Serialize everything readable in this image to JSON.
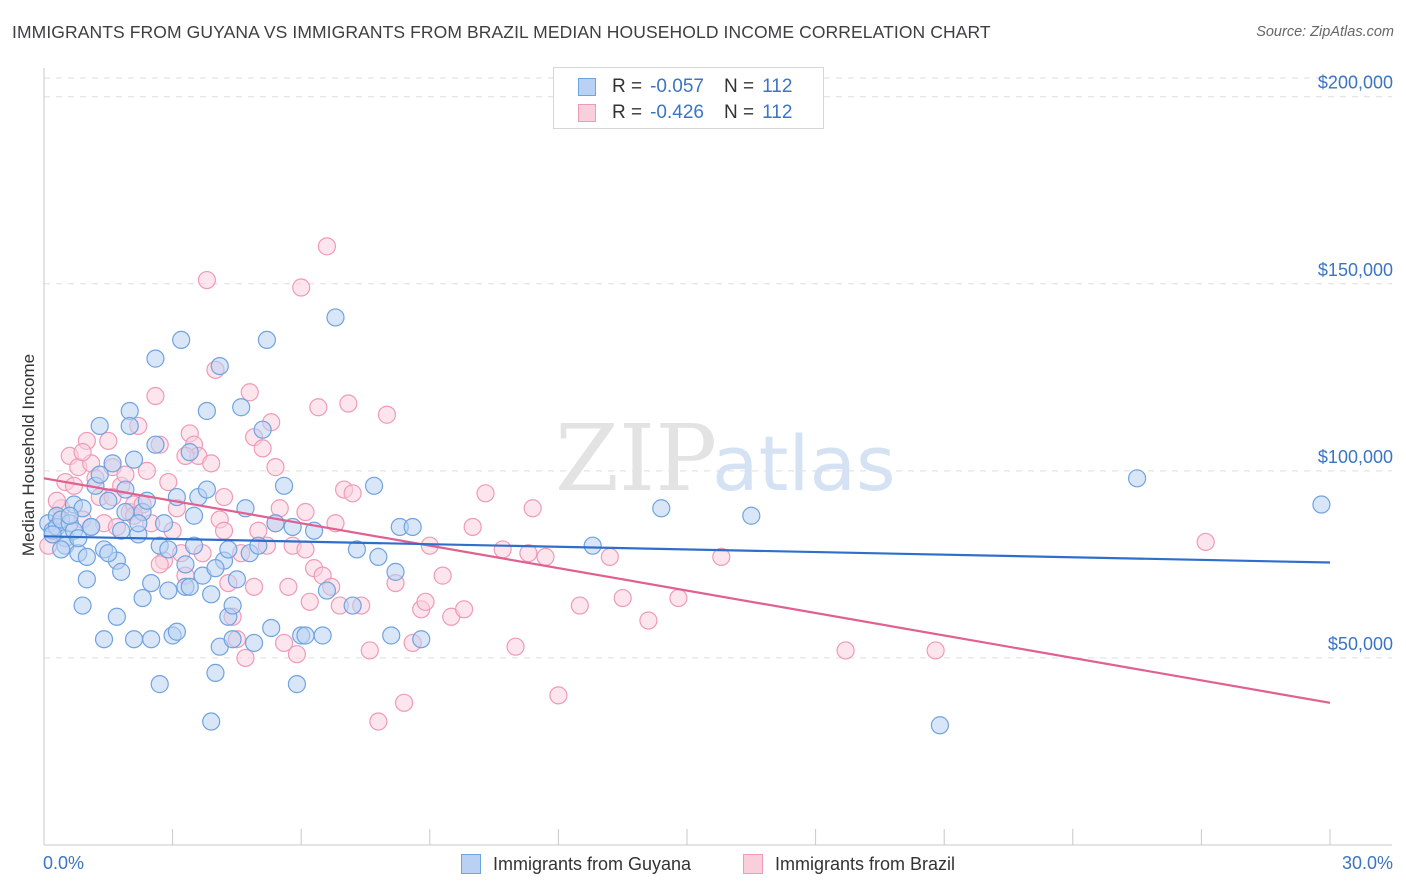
{
  "header": {
    "title": "IMMIGRANTS FROM GUYANA VS IMMIGRANTS FROM BRAZIL MEDIAN HOUSEHOLD INCOME CORRELATION CHART",
    "source": "Source: ZipAtlas.com"
  },
  "watermark": {
    "zip": "ZIP",
    "atlas": "atlas"
  },
  "colors": {
    "guyana": "#6fa3e0",
    "guyana_fill": "#b9d2f3",
    "guyana_line": "#2f6fcc",
    "brazil": "#f09ab8",
    "brazil_fill": "#f9cfdc",
    "brazil_line": "#e0608f",
    "axis_text": "#3a75c4",
    "grid": "#dddddd"
  },
  "legend": {
    "rows": [
      {
        "r_label": "R =",
        "r_value": "-0.057",
        "n_label": "N =",
        "n_value": "112"
      },
      {
        "r_label": "R =",
        "r_value": "-0.426",
        "n_label": "N =",
        "n_value": "112"
      }
    ]
  },
  "bottom_legend": {
    "guyana_label": "Immigrants from Guyana",
    "brazil_label": "Immigrants from Brazil"
  },
  "chart_data": {
    "type": "scatter",
    "ylabel": "Median Household Income",
    "xlim": [
      0,
      30
    ],
    "ylim": [
      0,
      205000
    ],
    "x_tick_labels": [
      "0.0%",
      "30.0%"
    ],
    "y_ticks": [
      {
        "value": 50000,
        "label": "$50,000"
      },
      {
        "value": 100000,
        "label": "$100,000"
      },
      {
        "value": 150000,
        "label": "$150,000"
      },
      {
        "value": 200000,
        "label": "$200,000"
      }
    ],
    "grid": "horizontal dashed",
    "series": [
      {
        "name": "Immigrants from Guyana",
        "trend": {
          "x": [
            0,
            30
          ],
          "y": [
            82500,
            75500
          ]
        },
        "points": [
          [
            0.1,
            86000
          ],
          [
            0.2,
            84000
          ],
          [
            0.3,
            88000
          ],
          [
            0.3,
            85000
          ],
          [
            0.4,
            87000
          ],
          [
            0.5,
            82000
          ],
          [
            0.5,
            80000
          ],
          [
            0.6,
            86000
          ],
          [
            0.7,
            84000
          ],
          [
            0.7,
            91000
          ],
          [
            0.8,
            78000
          ],
          [
            0.9,
            90000
          ],
          [
            0.9,
            64000
          ],
          [
            1.0,
            77000
          ],
          [
            1.0,
            71000
          ],
          [
            1.1,
            85000
          ],
          [
            1.2,
            96000
          ],
          [
            1.3,
            112000
          ],
          [
            1.3,
            99000
          ],
          [
            1.4,
            55000
          ],
          [
            1.4,
            79000
          ],
          [
            1.5,
            92000
          ],
          [
            1.6,
            102000
          ],
          [
            1.7,
            76000
          ],
          [
            1.7,
            61000
          ],
          [
            1.8,
            84000
          ],
          [
            1.9,
            89000
          ],
          [
            1.9,
            95000
          ],
          [
            2.0,
            116000
          ],
          [
            2.0,
            112000
          ],
          [
            2.1,
            103000
          ],
          [
            2.1,
            55000
          ],
          [
            2.2,
            83000
          ],
          [
            2.3,
            89000
          ],
          [
            2.3,
            66000
          ],
          [
            2.4,
            92000
          ],
          [
            2.5,
            55000
          ],
          [
            2.6,
            130000
          ],
          [
            2.6,
            107000
          ],
          [
            2.7,
            80000
          ],
          [
            2.7,
            43000
          ],
          [
            2.8,
            86000
          ],
          [
            2.9,
            68000
          ],
          [
            3.0,
            56000
          ],
          [
            3.1,
            57000
          ],
          [
            3.1,
            93000
          ],
          [
            3.2,
            135000
          ],
          [
            3.3,
            75000
          ],
          [
            3.3,
            69000
          ],
          [
            3.4,
            105000
          ],
          [
            3.4,
            69000
          ],
          [
            3.5,
            88000
          ],
          [
            3.6,
            93000
          ],
          [
            3.7,
            72000
          ],
          [
            3.8,
            95000
          ],
          [
            3.8,
            116000
          ],
          [
            3.9,
            67000
          ],
          [
            3.9,
            33000
          ],
          [
            4.0,
            46000
          ],
          [
            4.1,
            53000
          ],
          [
            4.1,
            128000
          ],
          [
            4.2,
            76000
          ],
          [
            4.3,
            79000
          ],
          [
            4.3,
            61000
          ],
          [
            4.4,
            55000
          ],
          [
            4.5,
            71000
          ],
          [
            4.6,
            117000
          ],
          [
            4.7,
            90000
          ],
          [
            4.8,
            78000
          ],
          [
            4.9,
            54000
          ],
          [
            5.0,
            80000
          ],
          [
            5.1,
            111000
          ],
          [
            5.2,
            135000
          ],
          [
            5.3,
            58000
          ],
          [
            5.4,
            86000
          ],
          [
            5.6,
            96000
          ],
          [
            5.8,
            85000
          ],
          [
            5.9,
            43000
          ],
          [
            6.0,
            56000
          ],
          [
            6.1,
            56000
          ],
          [
            6.3,
            84000
          ],
          [
            6.5,
            56000
          ],
          [
            6.6,
            68000
          ],
          [
            6.8,
            141000
          ],
          [
            7.2,
            64000
          ],
          [
            7.3,
            79000
          ],
          [
            7.7,
            96000
          ],
          [
            7.8,
            77000
          ],
          [
            8.1,
            56000
          ],
          [
            8.2,
            73000
          ],
          [
            8.3,
            85000
          ],
          [
            8.6,
            85000
          ],
          [
            8.8,
            55000
          ],
          [
            12.8,
            80000
          ],
          [
            14.4,
            90000
          ],
          [
            16.5,
            88000
          ],
          [
            20.9,
            32000
          ],
          [
            25.5,
            98000
          ],
          [
            29.8,
            91000
          ],
          [
            0.2,
            83000
          ],
          [
            0.4,
            79000
          ],
          [
            0.6,
            88000
          ],
          [
            0.8,
            82000
          ],
          [
            1.1,
            85000
          ],
          [
            1.5,
            78000
          ],
          [
            1.8,
            73000
          ],
          [
            2.2,
            86000
          ],
          [
            2.5,
            70000
          ],
          [
            2.9,
            79000
          ],
          [
            3.5,
            80000
          ],
          [
            4.0,
            74000
          ],
          [
            4.4,
            64000
          ]
        ]
      },
      {
        "name": "Immigrants from Brazil",
        "trend": {
          "x": [
            0,
            30
          ],
          "y": [
            98000,
            38000
          ]
        },
        "points": [
          [
            0.1,
            80000
          ],
          [
            0.2,
            83000
          ],
          [
            0.3,
            88000
          ],
          [
            0.4,
            90000
          ],
          [
            0.5,
            97000
          ],
          [
            0.6,
            104000
          ],
          [
            0.7,
            96000
          ],
          [
            0.8,
            101000
          ],
          [
            0.9,
            87000
          ],
          [
            1.0,
            108000
          ],
          [
            1.1,
            102000
          ],
          [
            1.2,
            98000
          ],
          [
            1.3,
            93000
          ],
          [
            1.4,
            86000
          ],
          [
            1.5,
            108000
          ],
          [
            1.6,
            101000
          ],
          [
            1.7,
            85000
          ],
          [
            1.8,
            96000
          ],
          [
            1.9,
            99000
          ],
          [
            2.0,
            89000
          ],
          [
            2.1,
            91000
          ],
          [
            2.2,
            112000
          ],
          [
            2.3,
            91000
          ],
          [
            2.4,
            100000
          ],
          [
            2.5,
            86000
          ],
          [
            2.6,
            120000
          ],
          [
            2.7,
            107000
          ],
          [
            2.8,
            76000
          ],
          [
            2.9,
            97000
          ],
          [
            3.0,
            84000
          ],
          [
            3.1,
            90000
          ],
          [
            3.2,
            78000
          ],
          [
            3.3,
            72000
          ],
          [
            3.4,
            110000
          ],
          [
            3.5,
            107000
          ],
          [
            3.6,
            104000
          ],
          [
            3.7,
            78000
          ],
          [
            3.8,
            151000
          ],
          [
            3.9,
            102000
          ],
          [
            4.0,
            127000
          ],
          [
            4.1,
            87000
          ],
          [
            4.2,
            84000
          ],
          [
            4.3,
            70000
          ],
          [
            4.4,
            61000
          ],
          [
            4.5,
            55000
          ],
          [
            4.6,
            78000
          ],
          [
            4.7,
            50000
          ],
          [
            4.8,
            121000
          ],
          [
            4.9,
            109000
          ],
          [
            5.0,
            84000
          ],
          [
            5.1,
            106000
          ],
          [
            5.2,
            80000
          ],
          [
            5.3,
            113000
          ],
          [
            5.4,
            86000
          ],
          [
            5.5,
            90000
          ],
          [
            5.6,
            54000
          ],
          [
            5.7,
            69000
          ],
          [
            5.8,
            80000
          ],
          [
            5.9,
            51000
          ],
          [
            6.0,
            149000
          ],
          [
            6.1,
            89000
          ],
          [
            6.2,
            65000
          ],
          [
            6.3,
            74000
          ],
          [
            6.4,
            117000
          ],
          [
            6.5,
            72000
          ],
          [
            6.6,
            160000
          ],
          [
            6.7,
            69000
          ],
          [
            6.8,
            86000
          ],
          [
            6.9,
            64000
          ],
          [
            7.0,
            95000
          ],
          [
            7.1,
            118000
          ],
          [
            7.2,
            94000
          ],
          [
            7.4,
            64000
          ],
          [
            7.6,
            52000
          ],
          [
            7.8,
            33000
          ],
          [
            8.0,
            115000
          ],
          [
            8.2,
            70000
          ],
          [
            8.4,
            38000
          ],
          [
            8.6,
            54000
          ],
          [
            8.8,
            63000
          ],
          [
            9.0,
            80000
          ],
          [
            9.3,
            72000
          ],
          [
            9.5,
            61000
          ],
          [
            9.8,
            63000
          ],
          [
            10.0,
            85000
          ],
          [
            10.3,
            94000
          ],
          [
            10.7,
            79000
          ],
          [
            11.0,
            53000
          ],
          [
            11.3,
            78000
          ],
          [
            11.7,
            77000
          ],
          [
            12.0,
            40000
          ],
          [
            12.5,
            64000
          ],
          [
            13.2,
            77000
          ],
          [
            14.1,
            60000
          ],
          [
            14.8,
            66000
          ],
          [
            15.8,
            77000
          ],
          [
            18.7,
            52000
          ],
          [
            20.8,
            52000
          ],
          [
            27.1,
            81000
          ],
          [
            0.3,
            92000
          ],
          [
            0.9,
            105000
          ],
          [
            1.6,
            93000
          ],
          [
            2.1,
            88000
          ],
          [
            2.7,
            75000
          ],
          [
            3.3,
            104000
          ],
          [
            4.2,
            93000
          ],
          [
            4.9,
            69000
          ],
          [
            5.4,
            101000
          ],
          [
            6.1,
            79000
          ],
          [
            8.9,
            65000
          ],
          [
            11.4,
            90000
          ],
          [
            13.5,
            66000
          ]
        ]
      }
    ]
  }
}
